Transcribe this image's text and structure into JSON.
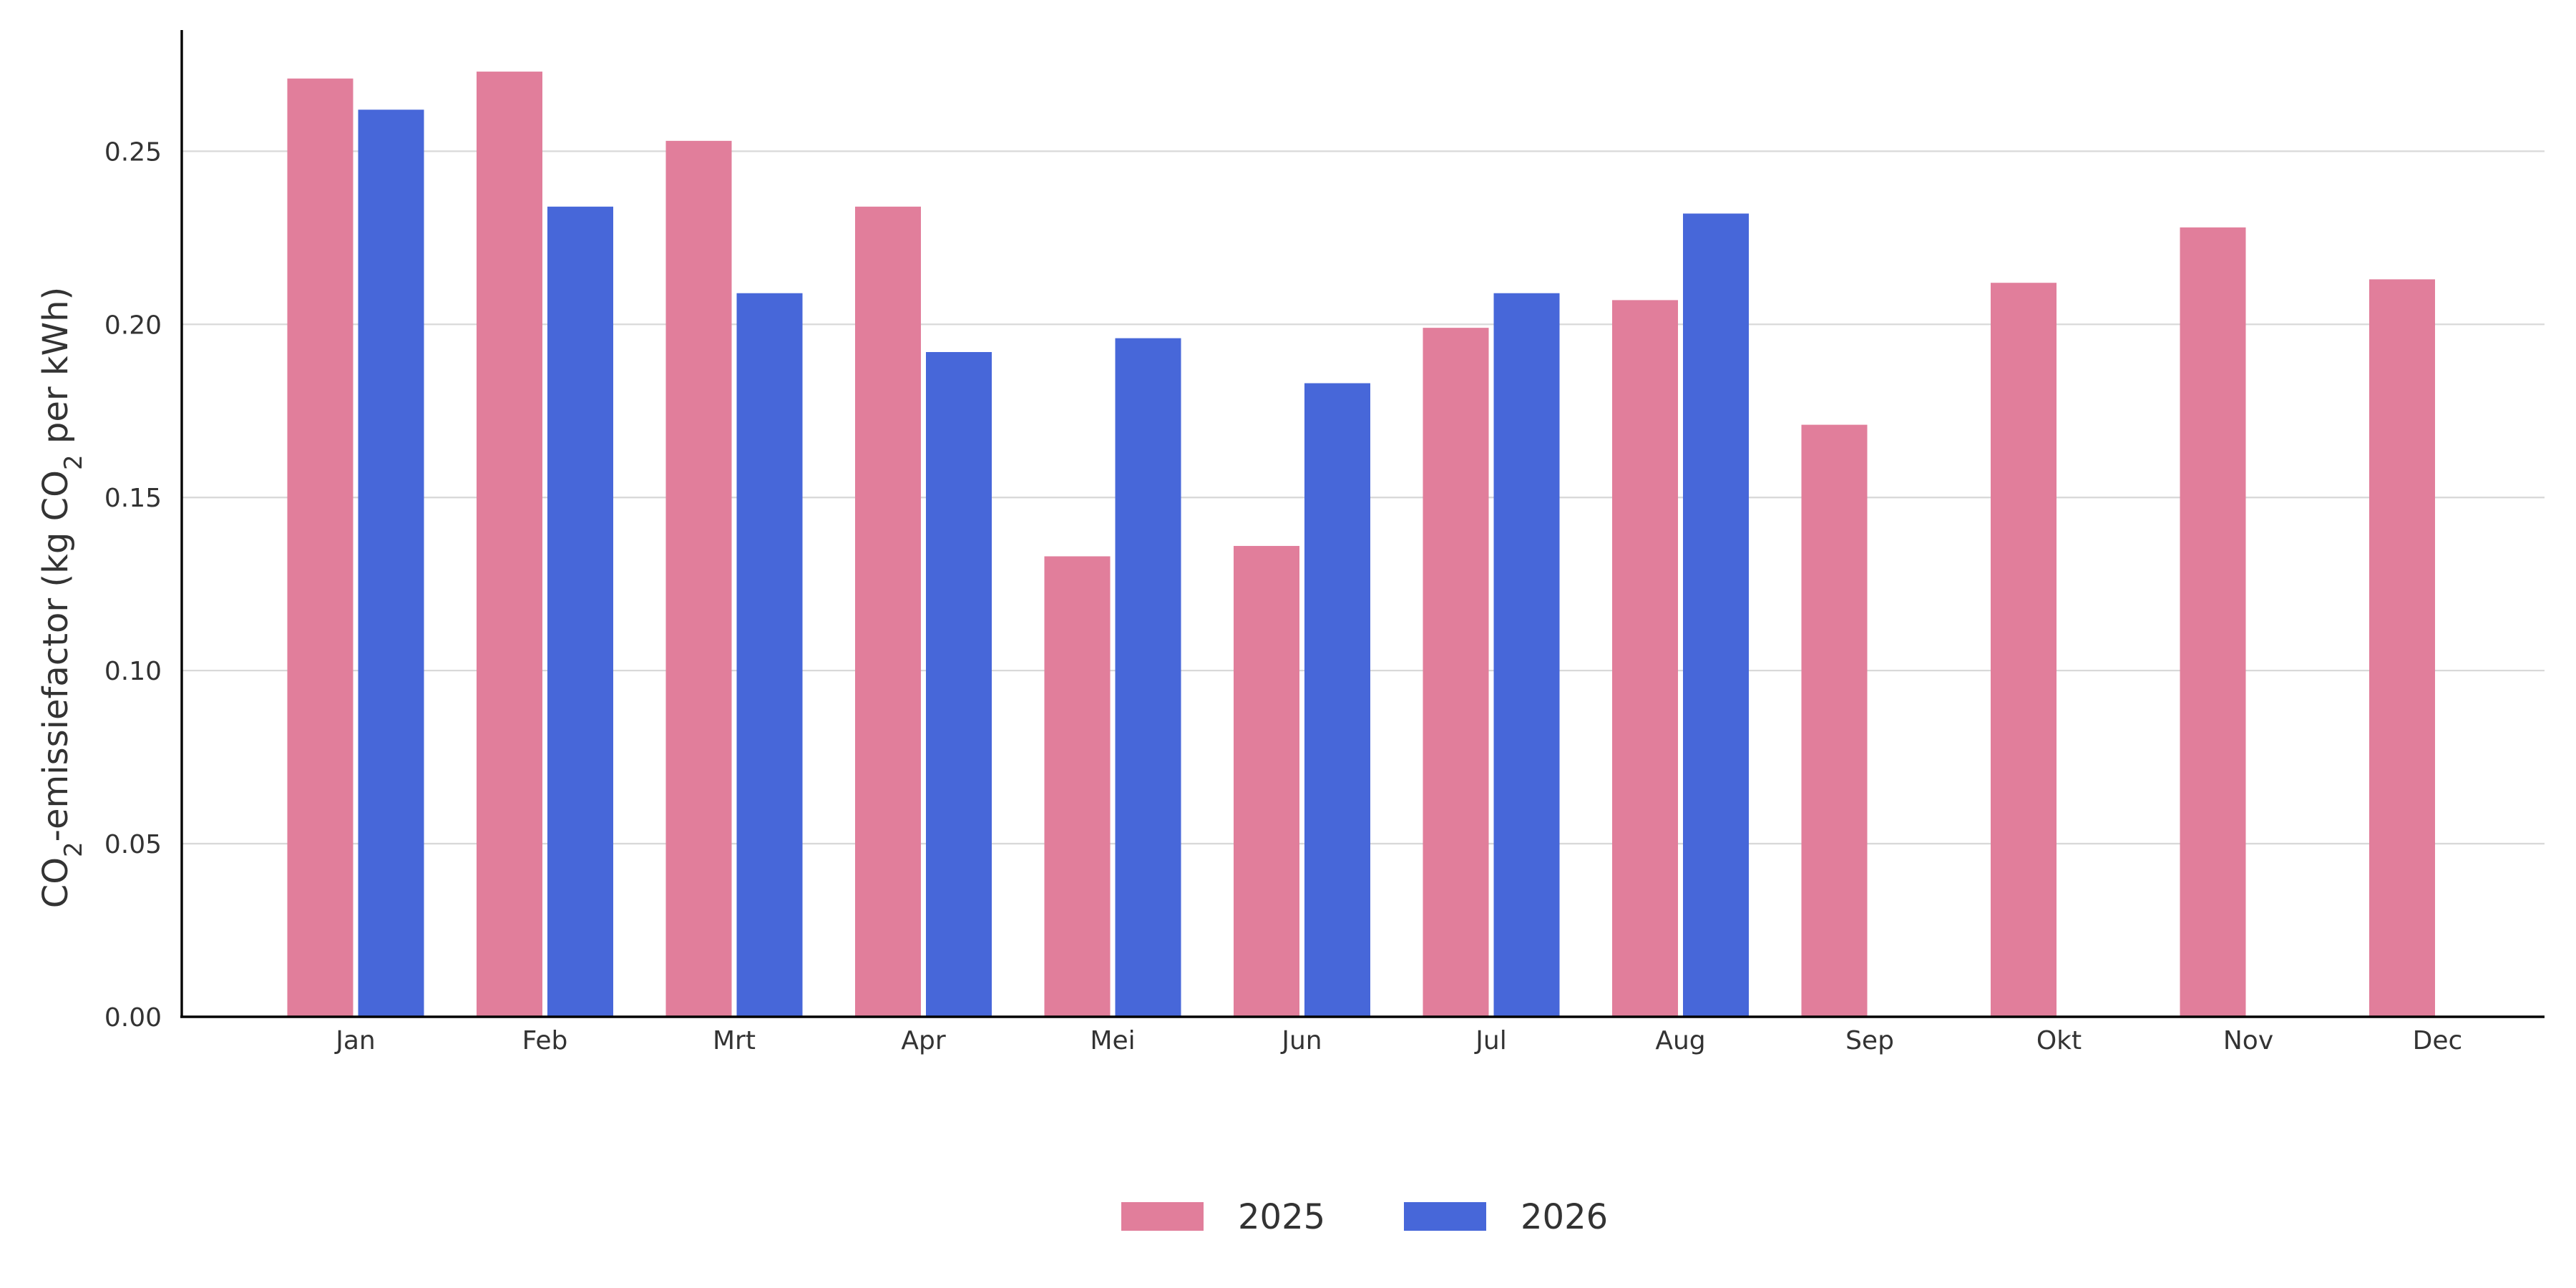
{
  "chart_data": {
    "type": "bar",
    "categories": [
      "Jan",
      "Feb",
      "Mrt",
      "Apr",
      "Mei",
      "Jun",
      "Jul",
      "Aug",
      "Sep",
      "Okt",
      "Nov",
      "Dec"
    ],
    "series": [
      {
        "name": "2025",
        "color": "#e17e9b",
        "values": [
          0.271,
          0.273,
          0.253,
          0.234,
          0.133,
          0.136,
          0.199,
          0.207,
          0.171,
          0.212,
          0.228,
          0.213
        ]
      },
      {
        "name": "2026",
        "color": "#4767d9",
        "values": [
          0.262,
          0.234,
          0.209,
          0.192,
          0.196,
          0.183,
          0.209,
          0.232,
          null,
          null,
          null,
          null
        ]
      }
    ],
    "ylabel": {
      "prefix": "CO",
      "sub": "2",
      "middle": "-emissiefactor (kg CO",
      "sub2": "2",
      "suffix": " per kWh)"
    },
    "yticks": [
      "0.00",
      "0.05",
      "0.10",
      "0.15",
      "0.20",
      "0.25"
    ],
    "ylim": [
      0,
      0.285
    ],
    "grid": true,
    "legend_position": "bottom-center"
  }
}
